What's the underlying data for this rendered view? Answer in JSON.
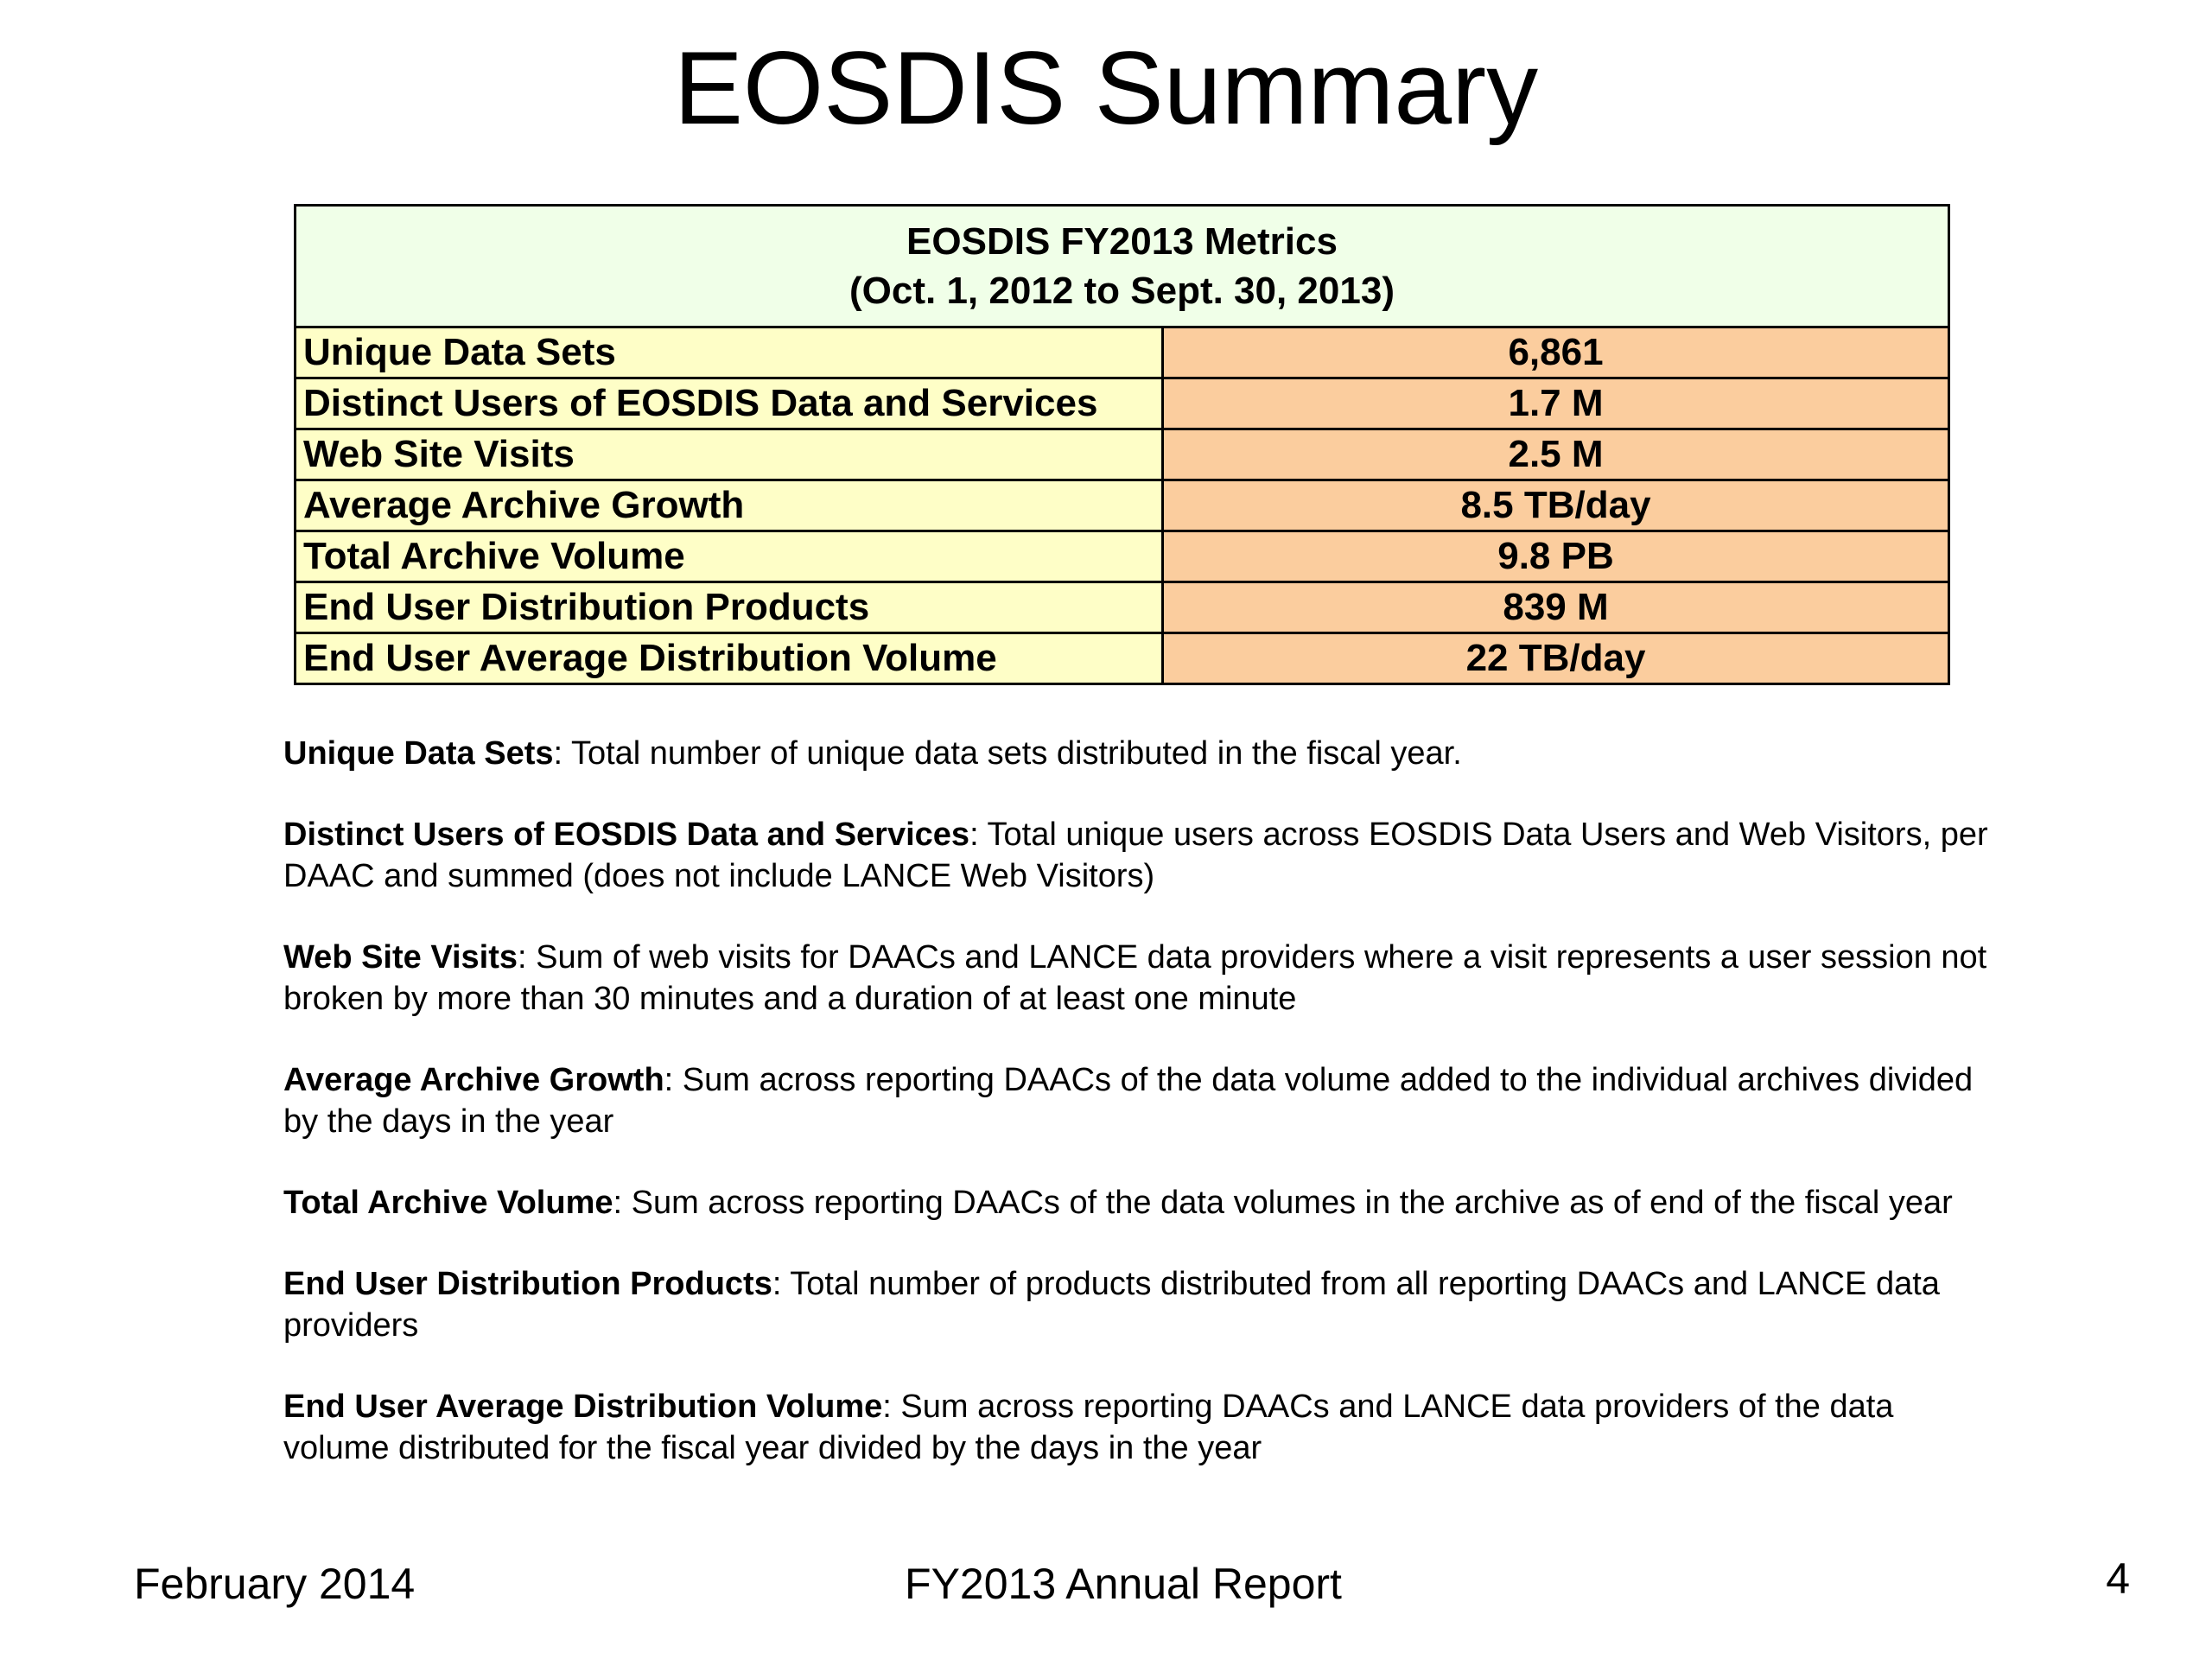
{
  "slide": {
    "title": "EOSDIS Summary"
  },
  "metrics_table": {
    "heading_line1": "EOSDIS FY2013 Metrics",
    "heading_line2": "(Oct. 1, 2012 to Sept. 30, 2013)",
    "rows": [
      {
        "label": "Unique Data Sets",
        "value": "6,861"
      },
      {
        "label": "Distinct Users of EOSDIS Data and Services",
        "value": "1.7 M"
      },
      {
        "label": "Web Site Visits",
        "value": "2.5 M"
      },
      {
        "label": "Average Archive Growth",
        "value": "8.5 TB/day"
      },
      {
        "label": "Total Archive Volume",
        "value": "9.8 PB"
      },
      {
        "label": "End User Distribution Products",
        "value": "839 M"
      },
      {
        "label": "End User Average Distribution Volume",
        "value": "22 TB/day"
      }
    ]
  },
  "definitions": [
    {
      "term": "Unique Data Sets",
      "text": ": Total number of unique data sets distributed in the fiscal year."
    },
    {
      "term": "Distinct Users of EOSDIS Data and Services",
      "text": ": Total unique users across EOSDIS Data Users and Web Visitors, per DAAC and summed (does not include LANCE Web Visitors)"
    },
    {
      "term": "Web Site Visits",
      "text": ": Sum of web visits for DAACs and LANCE data providers where a visit represents a user session not broken by more than 30 minutes and a duration of at least one minute"
    },
    {
      "term": "Average Archive Growth",
      "text": ":  Sum across reporting DAACs of the data volume added to the individual archives divided by the days in the year"
    },
    {
      "term": "Total Archive Volume",
      "text": ": Sum across reporting DAACs of the data volumes in the archive as of end of the fiscal year"
    },
    {
      "term": "End User Distribution Products",
      "text": ": Total number of products distributed from all reporting DAACs and LANCE data providers"
    },
    {
      "term": "End User Average Distribution Volume",
      "text": ":  Sum across reporting DAACs and LANCE data providers of the data volume distributed for the fiscal year divided by the days in the year"
    }
  ],
  "footer": {
    "date": "February 2014",
    "report_title": "FY2013 Annual Report",
    "page_number": "4"
  }
}
